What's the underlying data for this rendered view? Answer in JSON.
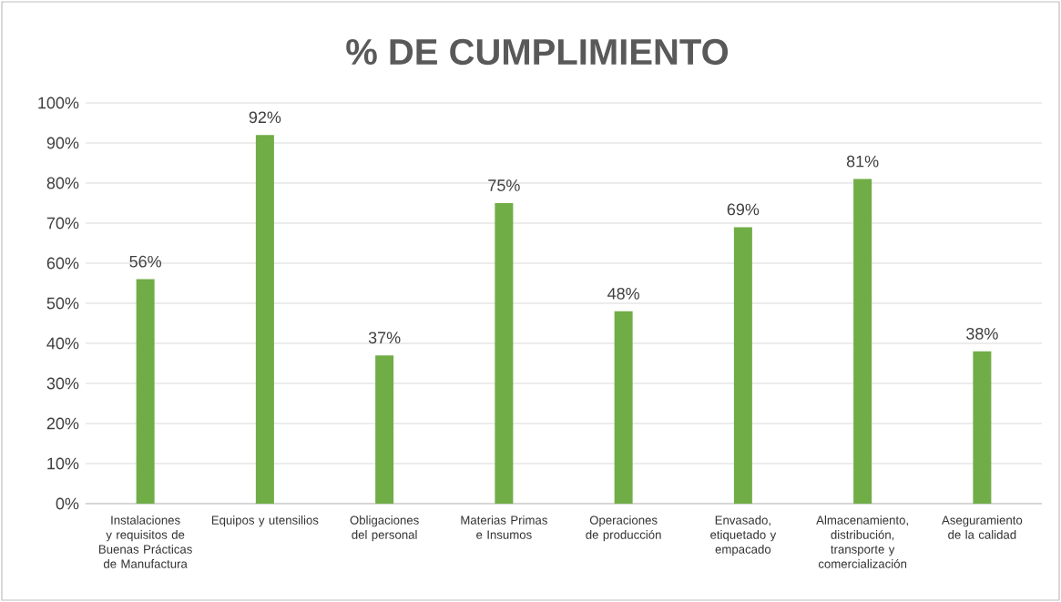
{
  "chart_data": {
    "type": "bar",
    "title": "% DE CUMPLIMIENTO",
    "categories": [
      "Instalaciones y requisitos de Buenas Prácticas de Manufactura",
      "Equipos y utensilios",
      "Obligaciones del personal",
      "Materias Primas e Insumos",
      "Operaciones de producción",
      "Envasado, etiquetado y empacado",
      "Almacenamiento, distribución, transporte y comercialización",
      "Aseguramiento de la calidad"
    ],
    "values": [
      56,
      92,
      37,
      75,
      48,
      69,
      81,
      38
    ],
    "value_labels": [
      "56%",
      "92%",
      "37%",
      "75%",
      "48%",
      "69%",
      "81%",
      "38%"
    ],
    "color": "#70ad47",
    "ylim": [
      0,
      100
    ],
    "yticks": [
      {
        "value": 0,
        "label": "0%"
      },
      {
        "value": 10,
        "label": "10%"
      },
      {
        "value": 20,
        "label": "20%"
      },
      {
        "value": 30,
        "label": "30%"
      },
      {
        "value": 40,
        "label": "40%"
      },
      {
        "value": 50,
        "label": "50%"
      },
      {
        "value": 60,
        "label": "60%"
      },
      {
        "value": 70,
        "label": "70%"
      },
      {
        "value": 80,
        "label": "80%"
      },
      {
        "value": 90,
        "label": "90%"
      },
      {
        "value": 100,
        "label": "100%"
      }
    ],
    "grid": "y"
  }
}
